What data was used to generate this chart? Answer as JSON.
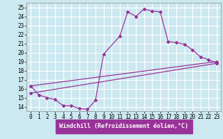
{
  "xlabel": "Windchill (Refroidissement éolien,°C)",
  "bg_color": "#cce8f0",
  "grid_color": "#ffffff",
  "line_color": "#993399",
  "ylim": [
    13.5,
    25.5
  ],
  "xlim": [
    -0.5,
    23.5
  ],
  "yticks": [
    14,
    15,
    16,
    17,
    18,
    19,
    20,
    21,
    22,
    23,
    24,
    25
  ],
  "xticks": [
    0,
    1,
    2,
    3,
    4,
    5,
    6,
    7,
    8,
    9,
    10,
    11,
    12,
    13,
    14,
    15,
    16,
    17,
    18,
    19,
    20,
    21,
    22,
    23
  ],
  "line1_x": [
    0,
    1,
    2,
    3,
    4,
    5,
    6,
    7,
    8,
    9,
    11,
    12,
    13,
    14,
    15,
    16,
    17,
    18,
    19,
    20,
    21,
    22,
    23
  ],
  "line1_y": [
    16.3,
    15.3,
    15.0,
    14.8,
    14.1,
    14.1,
    13.8,
    13.7,
    14.7,
    19.8,
    21.8,
    24.5,
    24.0,
    24.8,
    24.6,
    24.5,
    21.2,
    21.1,
    20.9,
    20.3,
    19.5,
    19.2,
    18.8
  ],
  "line2_x": [
    0,
    23
  ],
  "line2_y": [
    15.5,
    18.8
  ],
  "line3_x": [
    0,
    23
  ],
  "line3_y": [
    16.3,
    19.0
  ],
  "marker": "D",
  "markersize": 2.0,
  "linewidth": 0.9,
  "xlabel_bg": "#993399",
  "xlabel_color": "#ffffff",
  "xlabel_fontsize": 6.0,
  "tick_fontsize": 5.5,
  "xlabel_fontweight": "bold"
}
